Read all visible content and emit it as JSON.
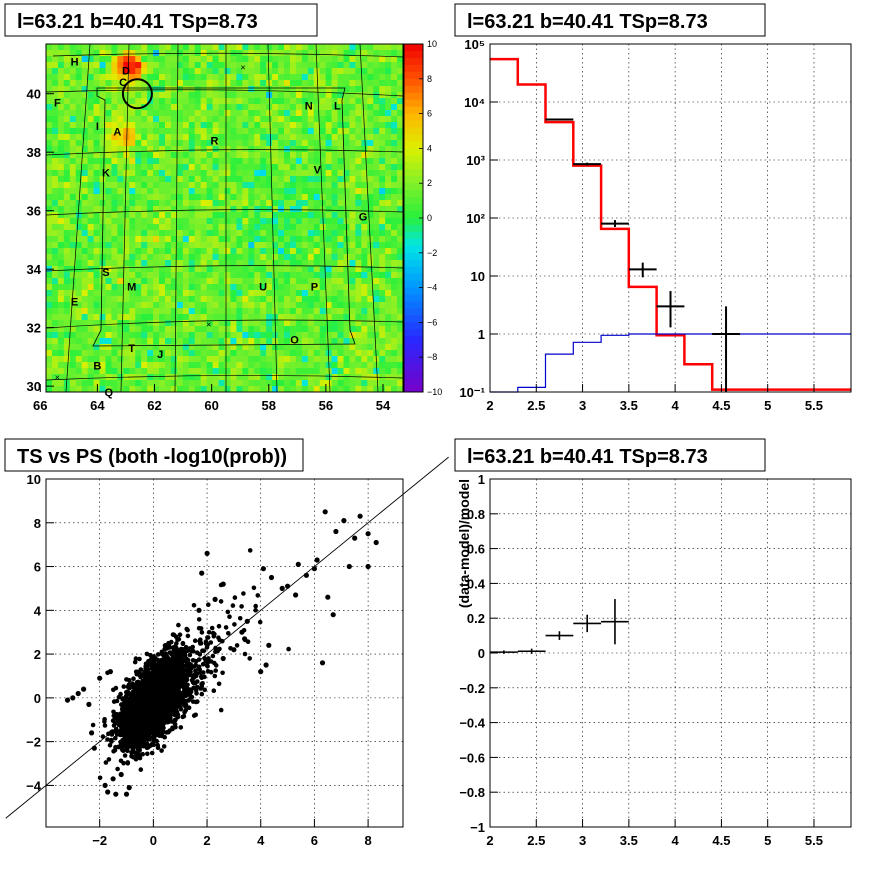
{
  "chart_data": [
    {
      "panel": "sky-map",
      "type": "heatmap",
      "title": "l=63.21 b=40.41 TSp=8.73",
      "x_ticks": [
        "66",
        "64",
        "62",
        "60",
        "58",
        "56",
        "54"
      ],
      "x_tick_values": [
        66,
        64,
        62,
        60,
        58,
        56,
        54
      ],
      "xlim": [
        65.8,
        53.3
      ],
      "y_ticks": [
        "30",
        "32",
        "34",
        "36",
        "38",
        "40"
      ],
      "y_tick_values": [
        30,
        32,
        34,
        36,
        38,
        40
      ],
      "ylim": [
        29.8,
        41.7
      ],
      "colorbar_ticks": [
        "10",
        "8",
        "6",
        "4",
        "2",
        "0",
        "−2",
        "−4",
        "−6",
        "−8",
        "−10"
      ],
      "colorbar_values": [
        10,
        8,
        6,
        4,
        2,
        0,
        -2,
        -4,
        -6,
        -8,
        -10
      ],
      "zlim": [
        -10,
        10
      ],
      "sources": [
        {
          "label": "H",
          "l": 64.8,
          "b": 41.1
        },
        {
          "label": "D",
          "l": 63.0,
          "b": 40.8
        },
        {
          "label": "C",
          "l": 63.1,
          "b": 40.4
        },
        {
          "label": "F",
          "l": 65.4,
          "b": 39.7
        },
        {
          "label": "N",
          "l": 56.6,
          "b": 39.6
        },
        {
          "label": "L",
          "l": 55.6,
          "b": 39.6
        },
        {
          "label": "I",
          "l": 64.0,
          "b": 38.9
        },
        {
          "label": "A",
          "l": 63.3,
          "b": 38.7
        },
        {
          "label": "R",
          "l": 59.9,
          "b": 38.4
        },
        {
          "label": "K",
          "l": 63.7,
          "b": 37.3
        },
        {
          "label": "V",
          "l": 56.3,
          "b": 37.4
        },
        {
          "label": "G",
          "l": 54.7,
          "b": 35.8
        },
        {
          "label": "S",
          "l": 63.7,
          "b": 33.9
        },
        {
          "label": "E",
          "l": 64.8,
          "b": 32.9
        },
        {
          "label": "M",
          "l": 62.8,
          "b": 33.4
        },
        {
          "label": "U",
          "l": 58.2,
          "b": 33.4
        },
        {
          "label": "P",
          "l": 56.4,
          "b": 33.4
        },
        {
          "label": "O",
          "l": 57.1,
          "b": 31.6
        },
        {
          "label": "T",
          "l": 62.8,
          "b": 31.3
        },
        {
          "label": "J",
          "l": 61.8,
          "b": 31.1
        },
        {
          "label": "B",
          "l": 64.0,
          "b": 30.7
        },
        {
          "label": "Q",
          "l": 63.6,
          "b": 29.8
        }
      ],
      "crosses": [
        {
          "l": 58.9,
          "b": 40.9
        },
        {
          "l": 60.1,
          "b": 32.1
        },
        {
          "l": 65.4,
          "b": 30.3
        }
      ],
      "circle": {
        "l": 62.6,
        "b": 40.0,
        "r_deg": 0.6
      }
    },
    {
      "panel": "ts-spectrum",
      "type": "line",
      "title": "l=63.21 b=40.41 TSp=8.73",
      "x_ticks": [
        "2",
        "2.5",
        "3",
        "3.5",
        "4",
        "4.5",
        "5",
        "5.5"
      ],
      "x_tick_values": [
        2,
        2.5,
        3,
        3.5,
        4,
        4.5,
        5,
        5.5
      ],
      "xlim": [
        2,
        5.9
      ],
      "y_scale": "log",
      "y_ticks": [
        "10⁻¹",
        "1",
        "10",
        "10²",
        "10³",
        "10⁴",
        "10⁵"
      ],
      "y_tick_values": [
        0.1,
        1,
        10,
        100,
        1000,
        10000,
        100000
      ],
      "ylim": [
        0.1,
        100000
      ],
      "bin_edges": [
        2,
        2.3,
        2.6,
        2.9,
        3.2,
        3.5,
        3.8,
        4.1,
        4.4,
        4.7,
        5.0,
        5.3,
        5.6,
        5.9
      ],
      "series": [
        {
          "name": "",
          "style": "step",
          "color": "#ff0000",
          "values": [
            55000,
            20000,
            4500,
            800,
            65,
            6.5,
            0.95,
            0.3,
            0.11,
            0.11,
            0.11,
            0.11,
            0.11
          ]
        },
        {
          "name": "",
          "style": "step",
          "color": "#0000cc",
          "values": [
            0.07,
            0.12,
            0.45,
            0.72,
            0.95,
            1.0,
            1.0,
            1.0,
            1.0,
            1.0,
            1.0,
            1.0,
            1.0
          ]
        },
        {
          "name": "",
          "style": "errorbars",
          "color": "#000000",
          "points": [
            {
              "x": 2.75,
              "y": 5000,
              "xerr": 0.15,
              "ylo": 4800,
              "yhi": 5200
            },
            {
              "x": 3.05,
              "y": 850,
              "xerr": 0.15,
              "ylo": 800,
              "yhi": 900
            },
            {
              "x": 3.35,
              "y": 80,
              "xerr": 0.15,
              "ylo": 70,
              "yhi": 92
            },
            {
              "x": 3.65,
              "y": 13,
              "xerr": 0.15,
              "ylo": 9.5,
              "yhi": 17
            },
            {
              "x": 3.95,
              "y": 3.0,
              "xerr": 0.15,
              "ylo": 1.3,
              "yhi": 5.5
            },
            {
              "x": 4.55,
              "y": 1.0,
              "xerr": 0.15,
              "ylo": 0.1,
              "yhi": 3.0
            }
          ]
        }
      ]
    },
    {
      "panel": "scatter",
      "type": "scatter",
      "title": "TS vs PS (both -log10(prob))",
      "x_ticks": [
        "−2",
        "0",
        "2",
        "4",
        "6",
        "8"
      ],
      "x_tick_values": [
        -2,
        0,
        2,
        4,
        6,
        8
      ],
      "xlim": [
        -4.0,
        9.3
      ],
      "y_ticks": [
        "−4",
        "−2",
        "0",
        "2",
        "4",
        "6",
        "8",
        "10"
      ],
      "y_tick_values": [
        -4,
        -2,
        0,
        2,
        4,
        6,
        8,
        10
      ],
      "ylim": [
        -5.9,
        10
      ],
      "diagonal": [
        [
          -5.5,
          -5.5
        ],
        [
          11.0,
          11.0
        ]
      ],
      "outliers": [
        [
          6.4,
          8.5
        ],
        [
          6.8,
          7.6
        ],
        [
          7.1,
          8.1
        ],
        [
          7.5,
          7.3
        ],
        [
          8.0,
          7.5
        ],
        [
          7.7,
          8.3
        ],
        [
          8.3,
          7.1
        ],
        [
          7.3,
          6.0
        ],
        [
          8.0,
          6.0
        ],
        [
          6.1,
          6.3
        ],
        [
          5.4,
          6.1
        ],
        [
          4.4,
          5.5
        ],
        [
          4.1,
          5.9
        ],
        [
          6.0,
          5.9
        ],
        [
          6.5,
          4.6
        ],
        [
          6.7,
          3.8
        ],
        [
          6.3,
          1.6
        ],
        [
          5.3,
          4.7
        ],
        [
          4.8,
          5.0
        ],
        [
          5.7,
          5.6
        ],
        [
          5.0,
          5.1
        ],
        [
          4.2,
          1.5
        ],
        [
          4.0,
          1.2
        ],
        [
          3.4,
          2.7
        ],
        [
          3.3,
          3.0
        ],
        [
          3.5,
          3.5
        ],
        [
          3.0,
          2.2
        ],
        [
          2.6,
          1.8
        ],
        [
          4.3,
          2.4
        ],
        [
          1.7,
          4.0
        ],
        [
          1.8,
          5.7
        ],
        [
          2.3,
          4.5
        ],
        [
          2.0,
          6.6
        ],
        [
          2.6,
          5.2
        ],
        [
          -2.8,
          0.2
        ],
        [
          -2.6,
          0.4
        ],
        [
          -2.4,
          -0.3
        ],
        [
          -2.3,
          -1.6
        ],
        [
          -2.2,
          -2.3
        ],
        [
          -1.8,
          -4.0
        ],
        [
          -1.7,
          -4.3
        ],
        [
          -1.5,
          -3.7
        ],
        [
          -1.4,
          -4.4
        ],
        [
          -1.2,
          -3.5
        ],
        [
          -0.9,
          -4.1
        ],
        [
          -1.0,
          -4.4
        ],
        [
          -2.0,
          0.9
        ],
        [
          -1.6,
          1.2
        ],
        [
          -3.2,
          -0.1
        ],
        [
          -3.0,
          0.0
        ]
      ]
    },
    {
      "panel": "residuals",
      "type": "scatter",
      "title": "l=63.21 b=40.41 TSp=8.73",
      "ylabel": "(data-model)/model",
      "x_ticks": [
        "2",
        "2.5",
        "3",
        "3.5",
        "4",
        "4.5",
        "5",
        "5.5"
      ],
      "x_tick_values": [
        2,
        2.5,
        3,
        3.5,
        4,
        4.5,
        5,
        5.5
      ],
      "xlim": [
        2,
        5.9
      ],
      "y_ticks": [
        "−1",
        "−0.8",
        "−0.6",
        "−0.4",
        "−0.2",
        "0",
        "0.2",
        "0.4",
        "0.6",
        "0.8",
        "1"
      ],
      "y_tick_values": [
        -1,
        -0.8,
        -0.6,
        -0.4,
        -0.2,
        0,
        0.2,
        0.4,
        0.6,
        0.8,
        1
      ],
      "ylim": [
        -1,
        1
      ],
      "points": [
        {
          "x": 2.15,
          "y": 0.005,
          "xerr": 0.15,
          "ylo": -0.005,
          "yhi": 0.015
        },
        {
          "x": 2.45,
          "y": 0.01,
          "xerr": 0.15,
          "ylo": -0.005,
          "yhi": 0.025
        },
        {
          "x": 2.75,
          "y": 0.1,
          "xerr": 0.15,
          "ylo": 0.075,
          "yhi": 0.125
        },
        {
          "x": 3.05,
          "y": 0.17,
          "xerr": 0.15,
          "ylo": 0.12,
          "yhi": 0.22
        },
        {
          "x": 3.35,
          "y": 0.18,
          "xerr": 0.15,
          "ylo": 0.05,
          "yhi": 0.31
        }
      ]
    }
  ]
}
